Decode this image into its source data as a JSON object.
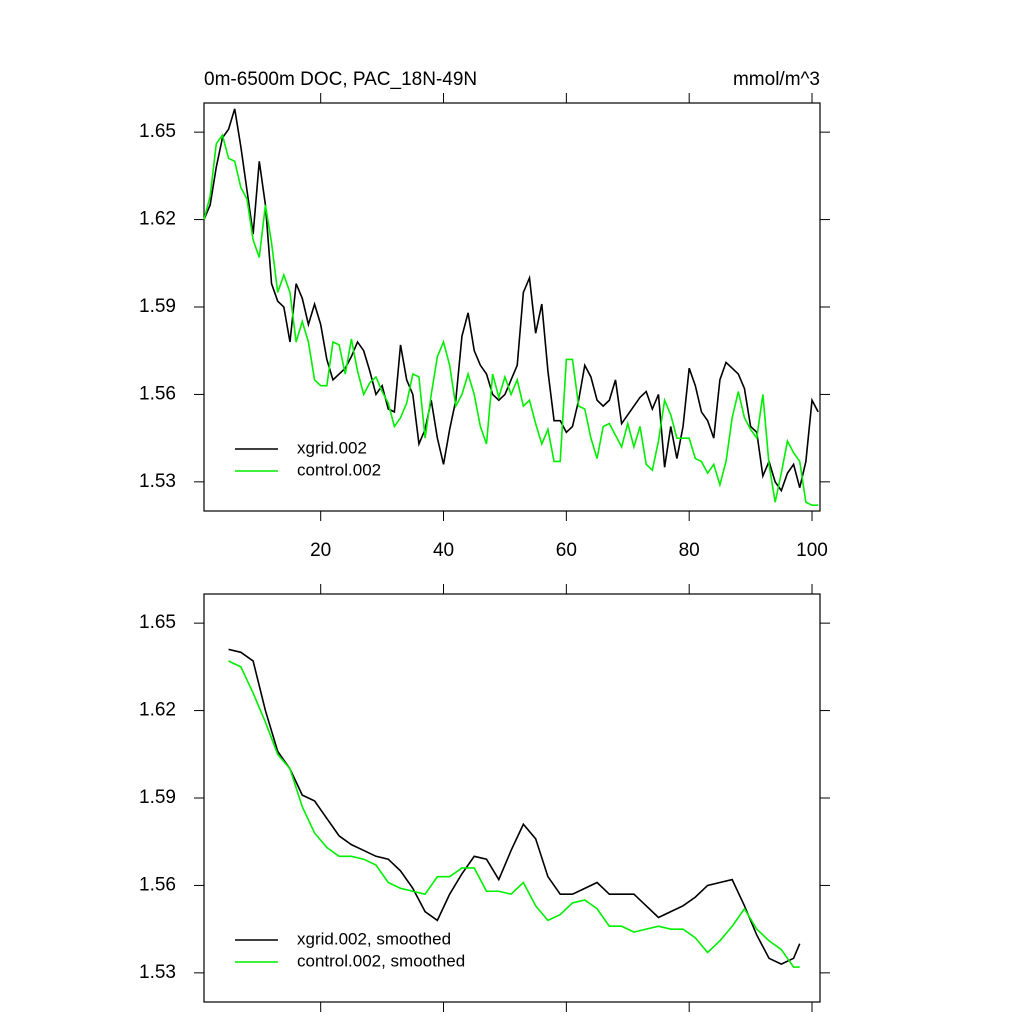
{
  "chart_data": [
    {
      "type": "line",
      "title": "0m-6500m DOC, PAC_18N-49N",
      "units": "mmol/m^3",
      "x": [
        1,
        2,
        3,
        4,
        5,
        6,
        7,
        8,
        9,
        10,
        11,
        12,
        13,
        14,
        15,
        16,
        17,
        18,
        19,
        20,
        21,
        22,
        23,
        24,
        25,
        26,
        27,
        28,
        29,
        30,
        31,
        32,
        33,
        34,
        35,
        36,
        37,
        38,
        39,
        40,
        41,
        42,
        43,
        44,
        45,
        46,
        47,
        48,
        49,
        50,
        51,
        52,
        53,
        54,
        55,
        56,
        57,
        58,
        59,
        60,
        61,
        62,
        63,
        64,
        65,
        66,
        67,
        68,
        69,
        70,
        71,
        72,
        73,
        74,
        75,
        76,
        77,
        78,
        79,
        80,
        81,
        82,
        83,
        84,
        85,
        86,
        87,
        88,
        89,
        90,
        91,
        92,
        93,
        94,
        95,
        96,
        97,
        98,
        99,
        100,
        101
      ],
      "series": [
        {
          "name": "xgrid.002",
          "color": "#000000",
          "values": [
            1.62,
            1.625,
            1.638,
            1.648,
            1.651,
            1.658,
            1.645,
            1.63,
            1.615,
            1.64,
            1.625,
            1.598,
            1.592,
            1.59,
            1.578,
            1.598,
            1.593,
            1.584,
            1.591,
            1.584,
            1.572,
            1.565,
            1.567,
            1.569,
            1.573,
            1.578,
            1.575,
            1.568,
            1.56,
            1.563,
            1.555,
            1.554,
            1.577,
            1.565,
            1.56,
            1.543,
            1.548,
            1.558,
            1.545,
            1.536,
            1.548,
            1.558,
            1.58,
            1.588,
            1.575,
            1.57,
            1.567,
            1.56,
            1.558,
            1.56,
            1.565,
            1.57,
            1.595,
            1.6,
            1.581,
            1.591,
            1.568,
            1.551,
            1.551,
            1.547,
            1.549,
            1.558,
            1.57,
            1.566,
            1.558,
            1.556,
            1.558,
            1.565,
            1.55,
            1.553,
            1.556,
            1.559,
            1.561,
            1.555,
            1.56,
            1.535,
            1.549,
            1.538,
            1.549,
            1.569,
            1.563,
            1.554,
            1.551,
            1.545,
            1.565,
            1.571,
            1.569,
            1.567,
            1.562,
            1.549,
            1.547,
            1.532,
            1.537,
            1.53,
            1.527,
            1.533,
            1.536,
            1.528,
            1.537,
            1.558,
            1.554
          ]
        },
        {
          "name": "control.002",
          "color": "#00ee00",
          "values": [
            1.62,
            1.628,
            1.646,
            1.649,
            1.641,
            1.64,
            1.631,
            1.627,
            1.613,
            1.607,
            1.625,
            1.612,
            1.595,
            1.601,
            1.595,
            1.578,
            1.585,
            1.578,
            1.565,
            1.563,
            1.563,
            1.578,
            1.577,
            1.567,
            1.579,
            1.568,
            1.56,
            1.564,
            1.566,
            1.561,
            1.557,
            1.549,
            1.552,
            1.557,
            1.567,
            1.566,
            1.545,
            1.56,
            1.573,
            1.578,
            1.57,
            1.556,
            1.56,
            1.567,
            1.56,
            1.549,
            1.543,
            1.567,
            1.559,
            1.566,
            1.56,
            1.565,
            1.556,
            1.558,
            1.55,
            1.543,
            1.548,
            1.537,
            1.537,
            1.572,
            1.572,
            1.556,
            1.555,
            1.545,
            1.538,
            1.549,
            1.55,
            1.546,
            1.542,
            1.55,
            1.542,
            1.549,
            1.536,
            1.534,
            1.544,
            1.558,
            1.553,
            1.545,
            1.545,
            1.545,
            1.538,
            1.537,
            1.533,
            1.536,
            1.529,
            1.537,
            1.552,
            1.561,
            1.552,
            1.548,
            1.545,
            1.56,
            1.536,
            1.523,
            1.533,
            1.544,
            1.54,
            1.537,
            1.523,
            1.522,
            1.522
          ]
        }
      ],
      "xlim": [
        1,
        101.3
      ],
      "xticks": [
        20,
        40,
        60,
        80,
        100
      ],
      "xtick_labels": true,
      "ylim": [
        1.52,
        1.66
      ],
      "yticks": [
        1.53,
        1.56,
        1.59,
        1.62,
        1.65
      ],
      "legend": "lower left"
    },
    {
      "type": "line",
      "x": [
        5,
        7,
        9,
        11,
        13,
        15,
        17,
        19,
        21,
        23,
        25,
        27,
        29,
        31,
        33,
        35,
        37,
        39,
        41,
        43,
        45,
        47,
        49,
        51,
        53,
        55,
        57,
        59,
        61,
        63,
        65,
        67,
        69,
        71,
        73,
        75,
        77,
        79,
        81,
        83,
        85,
        87,
        89,
        91,
        93,
        95,
        97,
        98
      ],
      "series": [
        {
          "name": "xgrid.002, smoothed",
          "color": "#000000",
          "values": [
            1.641,
            1.64,
            1.637,
            1.62,
            1.606,
            1.6,
            1.591,
            1.589,
            1.583,
            1.577,
            1.574,
            1.572,
            1.57,
            1.569,
            1.565,
            1.559,
            1.551,
            1.548,
            1.557,
            1.564,
            1.57,
            1.569,
            1.562,
            1.572,
            1.581,
            1.576,
            1.563,
            1.557,
            1.557,
            1.559,
            1.561,
            1.557,
            1.557,
            1.557,
            1.553,
            1.549,
            1.551,
            1.553,
            1.556,
            1.56,
            1.561,
            1.562,
            1.553,
            1.543,
            1.535,
            1.533,
            1.535,
            1.54
          ]
        },
        {
          "name": "control.002, smoothed",
          "color": "#00ee00",
          "values": [
            1.637,
            1.635,
            1.626,
            1.616,
            1.605,
            1.6,
            1.587,
            1.578,
            1.573,
            1.57,
            1.57,
            1.569,
            1.567,
            1.561,
            1.559,
            1.558,
            1.557,
            1.563,
            1.563,
            1.566,
            1.566,
            1.558,
            1.558,
            1.557,
            1.561,
            1.553,
            1.548,
            1.55,
            1.554,
            1.555,
            1.552,
            1.546,
            1.546,
            1.544,
            1.545,
            1.546,
            1.545,
            1.545,
            1.542,
            1.537,
            1.541,
            1.546,
            1.552,
            1.545,
            1.541,
            1.538,
            1.532,
            1.532
          ]
        }
      ],
      "xlim": [
        1,
        101.3
      ],
      "xticks": [
        20,
        40,
        60,
        80,
        100
      ],
      "xtick_labels": false,
      "ylim": [
        1.52,
        1.66
      ],
      "yticks": [
        1.53,
        1.56,
        1.59,
        1.62,
        1.65
      ],
      "legend": "lower left"
    }
  ]
}
